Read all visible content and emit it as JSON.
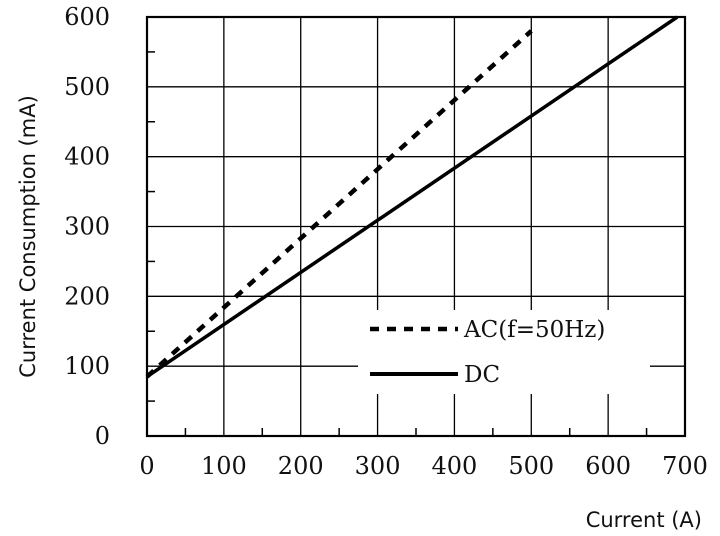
{
  "chart_data": {
    "type": "line",
    "title": "",
    "xlabel": "Current (A)",
    "ylabel": "Current Consumption (mA)",
    "xlim": [
      0,
      700
    ],
    "ylim": [
      0,
      600
    ],
    "xticks": [
      "0",
      "100",
      "200",
      "300",
      "400",
      "500",
      "600",
      "700"
    ],
    "yticks": [
      "0",
      "100",
      "200",
      "300",
      "400",
      "500",
      "600"
    ],
    "grid": true,
    "legend_position": "bottom-right",
    "series": [
      {
        "name": "AC(f=50Hz)",
        "style": "dashed",
        "color": "#000000",
        "x": [
          0,
          500
        ],
        "y": [
          85,
          580
        ]
      },
      {
        "name": "DC",
        "style": "solid",
        "color": "#000000",
        "x": [
          0,
          690
        ],
        "y": [
          85,
          600
        ]
      }
    ]
  }
}
